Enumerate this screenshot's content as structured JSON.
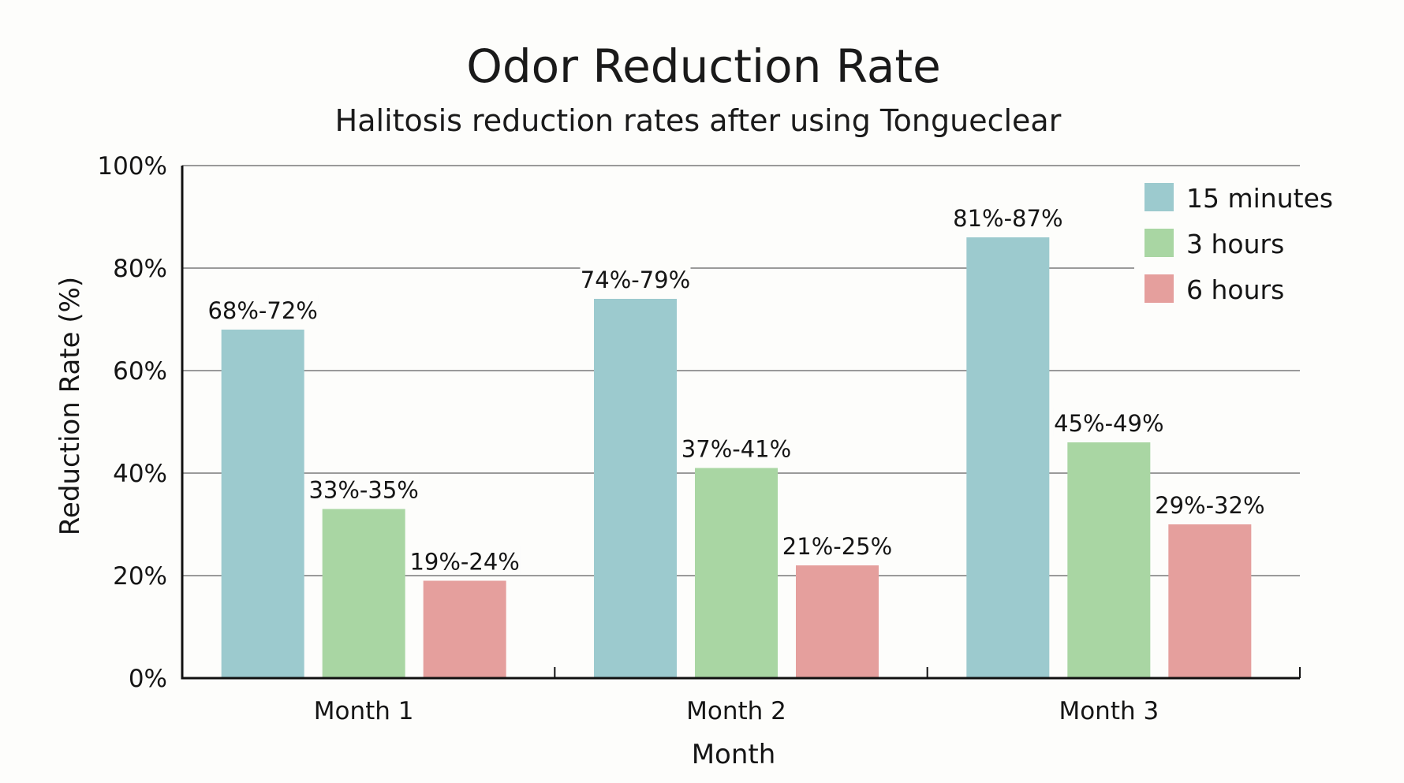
{
  "chart_data": {
    "type": "bar",
    "title": "Odor Reduction Rate",
    "subtitle": "Halitosis reduction rates after using Tongueclear",
    "xlabel": "Month",
    "ylabel": "Reduction Rate (%)",
    "categories": [
      "Month 1",
      "Month 2",
      "Month 3"
    ],
    "ylim": [
      0,
      100
    ],
    "yticks": [
      0,
      20,
      40,
      60,
      80,
      100
    ],
    "ytick_labels": [
      "0%",
      "20%",
      "40%",
      "60%",
      "80%",
      "100%"
    ],
    "grid": true,
    "legend_position": "top-right",
    "series": [
      {
        "name": "15 minutes",
        "color": "#9ccace",
        "values": [
          68,
          74,
          86
        ],
        "labels": [
          "68%-72%",
          "74%-79%",
          "81%-87%"
        ]
      },
      {
        "name": "3 hours",
        "color": "#a9d6a3",
        "values": [
          33,
          41,
          46
        ],
        "labels": [
          "33%-35%",
          "37%-41%",
          "45%-49%"
        ]
      },
      {
        "name": "6 hours",
        "color": "#e59f9d",
        "values": [
          19,
          22,
          30
        ],
        "labels": [
          "19%-24%",
          "21%-25%",
          "29%-32%"
        ]
      }
    ]
  }
}
